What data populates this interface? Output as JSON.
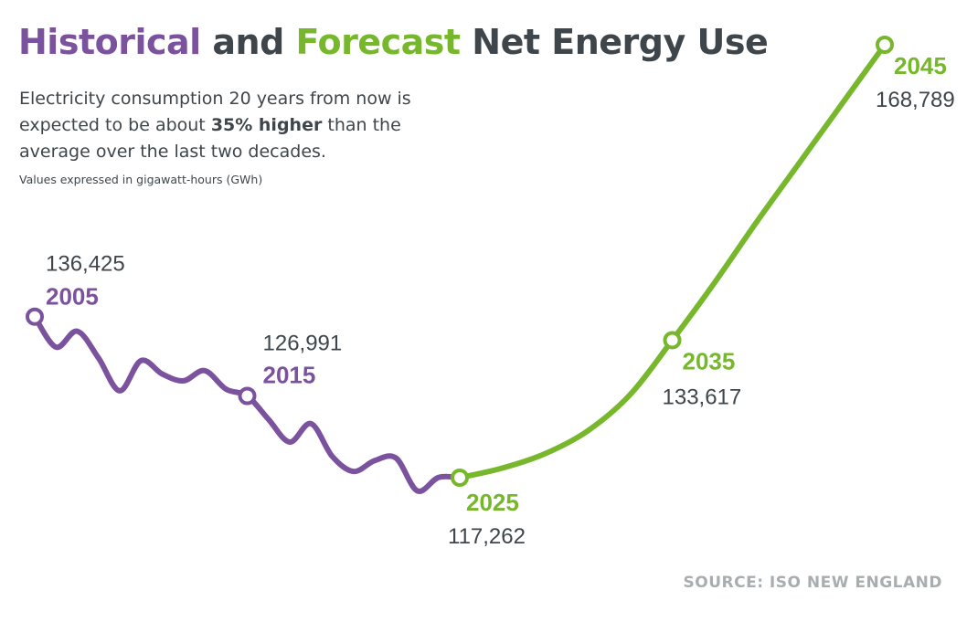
{
  "title": {
    "part1": "Historical",
    "part2": " and ",
    "part3": "Forecast",
    "part4": " Net Energy Use"
  },
  "subtitle": {
    "before": "Electricity consumption 20 years from now is expected to be about ",
    "bold": "35% higher",
    "after": " than the average over the last two decades."
  },
  "units_note": "Values expressed in gigawatt-hours (GWh)",
  "source": "SOURCE: ISO NEW ENGLAND",
  "colors": {
    "historical": "#7b529e",
    "forecast": "#77b72c",
    "text": "#3f464b",
    "muted": "#a8adaf"
  },
  "chart_data": {
    "type": "line",
    "title": "Historical and Forecast Net Energy Use",
    "ylabel": "GWh",
    "xlim": [
      2005,
      2045
    ],
    "ylim": [
      110000,
      172000
    ],
    "series": [
      {
        "name": "Historical",
        "x": [
          2005,
          2006,
          2007,
          2008,
          2009,
          2010,
          2011,
          2012,
          2013,
          2014,
          2015,
          2016,
          2017,
          2018,
          2019,
          2020,
          2021,
          2022,
          2023,
          2024,
          2025
        ],
        "values": [
          136425,
          132800,
          134700,
          131500,
          127600,
          131200,
          129600,
          128800,
          130000,
          127800,
          126991,
          124200,
          121500,
          123700,
          119800,
          118000,
          119300,
          119600,
          115700,
          117300,
          117262
        ]
      },
      {
        "name": "Forecast",
        "x": [
          2025,
          2027,
          2029,
          2031,
          2033,
          2035,
          2037,
          2039,
          2041,
          2043,
          2045
        ],
        "values": [
          117262,
          118400,
          120100,
          122800,
          127100,
          133617,
          140500,
          147800,
          154800,
          161800,
          168789
        ]
      }
    ],
    "markers": [
      {
        "year": "2005",
        "x": 2005,
        "value": 136425,
        "label": "136,425",
        "series": "Historical"
      },
      {
        "year": "2015",
        "x": 2015,
        "value": 126991,
        "label": "126,991",
        "series": "Historical"
      },
      {
        "year": "2025",
        "x": 2025,
        "value": 117262,
        "label": "117,262",
        "series": "Forecast"
      },
      {
        "year": "2035",
        "x": 2035,
        "value": 133617,
        "label": "133,617",
        "series": "Forecast"
      },
      {
        "year": "2045",
        "x": 2045,
        "value": 168789,
        "label": "168,789",
        "series": "Forecast"
      }
    ]
  }
}
